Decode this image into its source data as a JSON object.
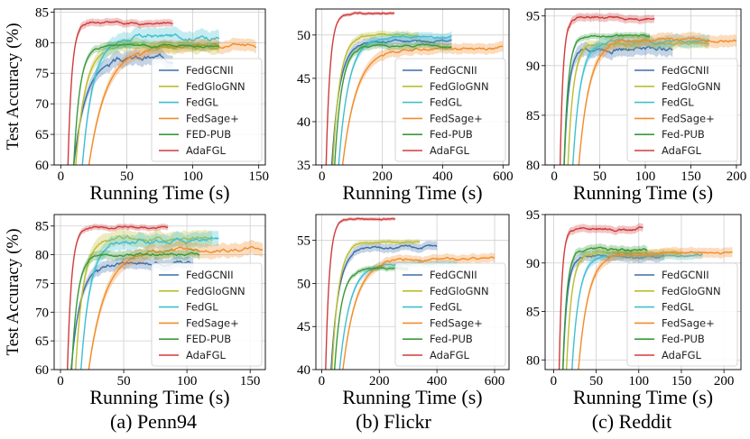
{
  "layout": {
    "ylabel": "Test Accuracy (%)"
  },
  "captions": [
    "(a) Penn94",
    "(b) Flickr",
    "(c) Reddit"
  ],
  "colors": {
    "FedGCNII": "#3a6ea8",
    "FedGloGNN": "#bdbd2e",
    "FedGL": "#3fbfd0",
    "FedSage+": "#f28c28",
    "FED-PUB": "#3a9a3a",
    "AdaFGL": "#d23b3b"
  },
  "chart_data": [
    {
      "id": "penn94-top",
      "type": "line",
      "xlabel": "Running Time (s)",
      "xlim": [
        -5,
        155
      ],
      "xticks": [
        0,
        50,
        100,
        150
      ],
      "ylim": [
        60,
        85.5
      ],
      "yticks": [
        60,
        65,
        70,
        75,
        80,
        85
      ],
      "legend": "bottom-right",
      "series": [
        {
          "name": "FedGCNII",
          "start": 8,
          "plateau": 77.5,
          "rise": 28,
          "end": 85,
          "band": 1.2
        },
        {
          "name": "FedGloGNN",
          "start": 10,
          "plateau": 79.5,
          "rise": 22,
          "end": 120,
          "band": 1.0
        },
        {
          "name": "FedGL",
          "start": 15,
          "plateau": 81.0,
          "rise": 25,
          "end": 120,
          "band": 1.3
        },
        {
          "name": "FedSage+",
          "start": 19,
          "plateau": 79.5,
          "rise": 40,
          "end": 148,
          "band": 1.0
        },
        {
          "name": "FED-PUB",
          "start": 9,
          "plateau": 79.5,
          "rise": 14,
          "end": 120,
          "band": 0.6
        },
        {
          "name": "AdaFGL",
          "start": 5,
          "plateau": 83.3,
          "rise": 9,
          "end": 85,
          "band": 0.6
        }
      ]
    },
    {
      "id": "flickr-top",
      "type": "line",
      "xlabel": "Running Time (s)",
      "xlim": [
        -20,
        620
      ],
      "xticks": [
        0,
        200,
        400,
        600
      ],
      "ylim": [
        35,
        53
      ],
      "yticks": [
        35,
        40,
        45,
        50
      ],
      "legend": "bottom-right",
      "series": [
        {
          "name": "FedGCNII",
          "start": 28,
          "plateau": 49.3,
          "rise": 80,
          "end": 430,
          "band": 0.5
        },
        {
          "name": "FedGloGNN",
          "start": 32,
          "plateau": 50.0,
          "rise": 70,
          "end": 320,
          "band": 0.4
        },
        {
          "name": "FedGL",
          "start": 50,
          "plateau": 49.8,
          "rise": 100,
          "end": 430,
          "band": 0.5
        },
        {
          "name": "FedSage+",
          "start": 60,
          "plateau": 48.5,
          "rise": 140,
          "end": 600,
          "band": 0.6
        },
        {
          "name": "Fed-PUB",
          "start": 38,
          "plateau": 48.8,
          "rise": 70,
          "end": 430,
          "band": 0.4
        },
        {
          "name": "AdaFGL",
          "start": 12,
          "plateau": 52.5,
          "rise": 40,
          "end": 240,
          "band": 0.2
        }
      ]
    },
    {
      "id": "reddit-top",
      "type": "line",
      "xlabel": "Running Time (s)",
      "xlim": [
        -10,
        205
      ],
      "xticks": [
        0,
        50,
        100,
        150,
        200
      ],
      "ylim": [
        80,
        95.7
      ],
      "yticks": [
        80,
        85,
        90,
        95
      ],
      "legend": "bottom-right",
      "series": [
        {
          "name": "FedGCNII",
          "start": 10,
          "plateau": 91.8,
          "rise": 15,
          "end": 130,
          "band": 0.7
        },
        {
          "name": "FedGloGNN",
          "start": 14,
          "plateau": 92.2,
          "rise": 18,
          "end": 170,
          "band": 0.5
        },
        {
          "name": "FedGL",
          "start": 19,
          "plateau": 92.5,
          "rise": 25,
          "end": 170,
          "band": 0.6
        },
        {
          "name": "FedSage+",
          "start": 25,
          "plateau": 92.6,
          "rise": 35,
          "end": 200,
          "band": 0.6
        },
        {
          "name": "Fed-PUB",
          "start": 10,
          "plateau": 93.0,
          "rise": 14,
          "end": 105,
          "band": 0.3
        },
        {
          "name": "AdaFGL",
          "start": 6,
          "plateau": 94.8,
          "rise": 10,
          "end": 110,
          "band": 0.4
        }
      ]
    },
    {
      "id": "penn94-bottom",
      "type": "line",
      "xlabel": "Running Time (s)",
      "xlim": [
        -5,
        162
      ],
      "xticks": [
        0,
        50,
        100,
        150
      ],
      "ylim": [
        60,
        87
      ],
      "yticks": [
        60,
        65,
        70,
        75,
        80,
        85
      ],
      "legend": "bottom-right",
      "series": [
        {
          "name": "FedGCNII",
          "start": 7,
          "plateau": 78.5,
          "rise": 22,
          "end": 105,
          "band": 1.0
        },
        {
          "name": "FedGloGNN",
          "start": 11,
          "plateau": 82.8,
          "rise": 18,
          "end": 120,
          "band": 1.3
        },
        {
          "name": "FedGL",
          "start": 15,
          "plateau": 82.5,
          "rise": 22,
          "end": 125,
          "band": 1.3
        },
        {
          "name": "FedSage+",
          "start": 20,
          "plateau": 81.0,
          "rise": 40,
          "end": 160,
          "band": 1.2
        },
        {
          "name": "FED-PUB",
          "start": 8,
          "plateau": 80.0,
          "rise": 14,
          "end": 110,
          "band": 0.8
        },
        {
          "name": "AdaFGL",
          "start": 5,
          "plateau": 84.8,
          "rise": 10,
          "end": 85,
          "band": 0.5
        }
      ]
    },
    {
      "id": "flickr-bottom",
      "type": "line",
      "xlabel": "Running Time (s)",
      "xlim": [
        -20,
        650
      ],
      "xticks": [
        0,
        200,
        400,
        600
      ],
      "ylim": [
        40,
        58
      ],
      "yticks": [
        40,
        45,
        50,
        55
      ],
      "legend": "bottom-right",
      "series": [
        {
          "name": "FedGCNII",
          "start": 28,
          "plateau": 54.2,
          "rise": 80,
          "end": 400,
          "band": 0.5
        },
        {
          "name": "FedGloGNN",
          "start": 32,
          "plateau": 54.8,
          "rise": 70,
          "end": 340,
          "band": 0.3
        },
        {
          "name": "FedGL",
          "start": 55,
          "plateau": 52.3,
          "rise": 110,
          "end": 470,
          "band": 0.4
        },
        {
          "name": "FedSage+",
          "start": 65,
          "plateau": 52.9,
          "rise": 140,
          "end": 600,
          "band": 0.5
        },
        {
          "name": "Fed-PUB",
          "start": 40,
          "plateau": 51.7,
          "rise": 70,
          "end": 300,
          "band": 0.3
        },
        {
          "name": "AdaFGL",
          "start": 12,
          "plateau": 57.5,
          "rise": 40,
          "end": 255,
          "band": 0.2
        }
      ]
    },
    {
      "id": "reddit-bottom",
      "type": "line",
      "xlabel": "Running Time (s)",
      "xlim": [
        -10,
        220
      ],
      "xticks": [
        0,
        50,
        100,
        150,
        200
      ],
      "ylim": [
        79,
        95
      ],
      "yticks": [
        80,
        85,
        90,
        95
      ],
      "legend": "bottom-right",
      "series": [
        {
          "name": "FedGCNII",
          "start": 10,
          "plateau": 90.7,
          "rise": 15,
          "end": 130,
          "band": 0.5
        },
        {
          "name": "FedGloGNN",
          "start": 14,
          "plateau": 91.0,
          "rise": 18,
          "end": 150,
          "band": 0.4
        },
        {
          "name": "FedGL",
          "start": 20,
          "plateau": 90.8,
          "rise": 25,
          "end": 175,
          "band": 0.4
        },
        {
          "name": "FedSage+",
          "start": 27,
          "plateau": 91.0,
          "rise": 35,
          "end": 210,
          "band": 0.5
        },
        {
          "name": "Fed-PUB",
          "start": 10,
          "plateau": 91.3,
          "rise": 14,
          "end": 110,
          "band": 0.4
        },
        {
          "name": "AdaFGL",
          "start": 6,
          "plateau": 93.5,
          "rise": 10,
          "end": 105,
          "band": 0.4
        }
      ]
    }
  ]
}
